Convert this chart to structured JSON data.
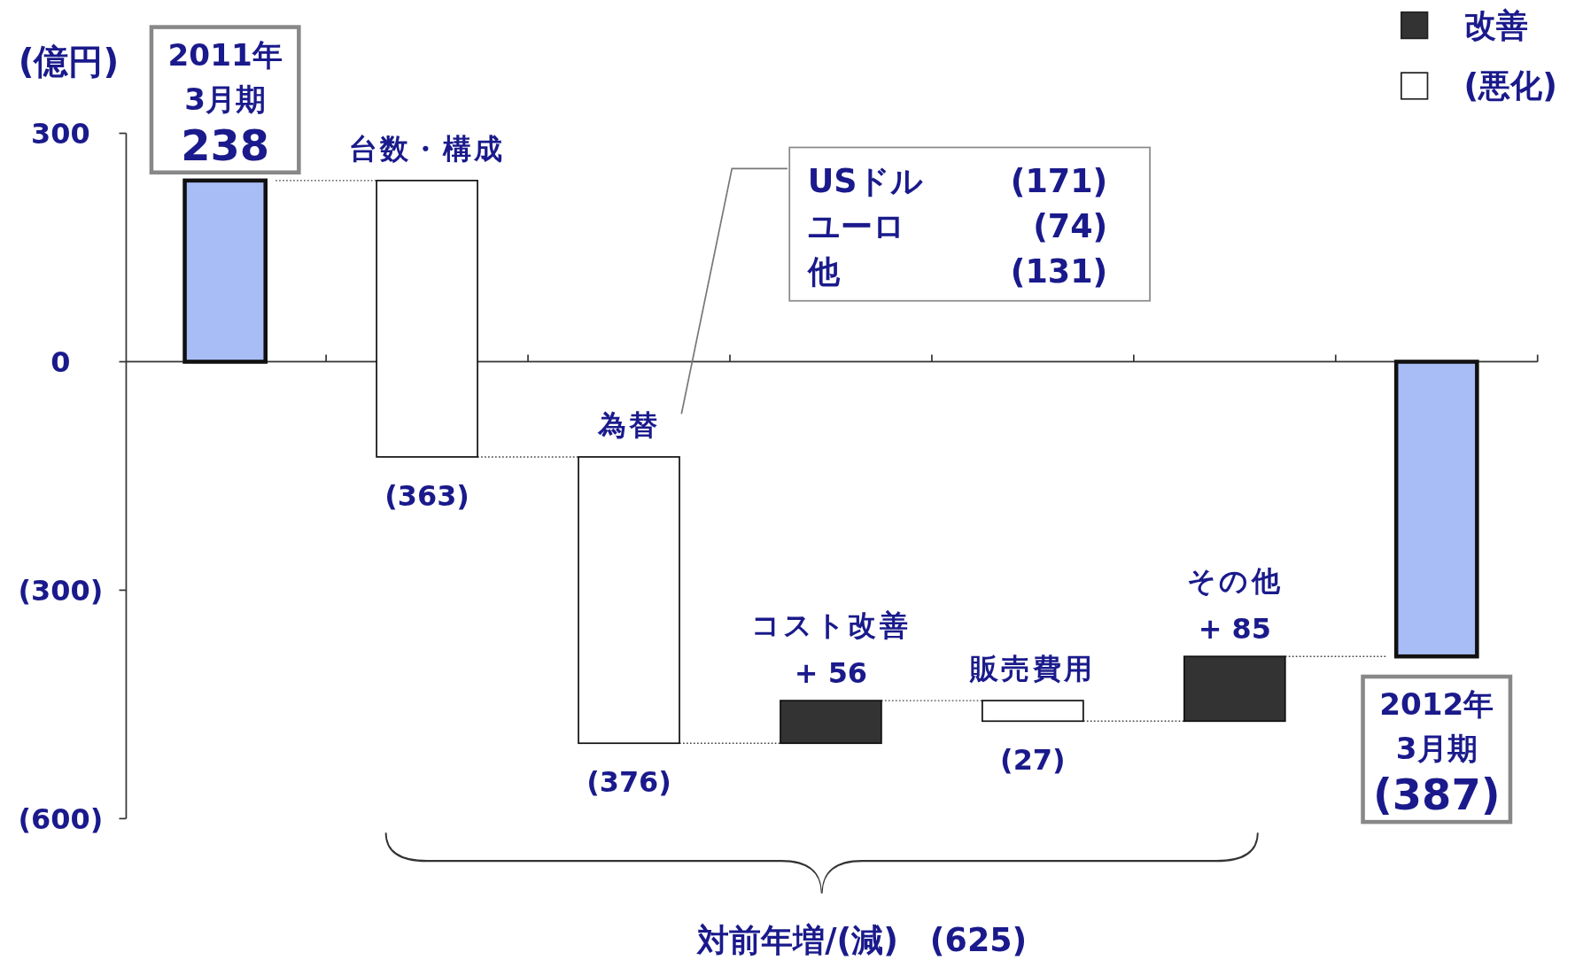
{
  "chart_data": {
    "type": "bar",
    "ylabel": "(億円)",
    "categories": [
      "2011年 3月期",
      "台数・構成",
      "為替",
      "コスト改善",
      "販売費用",
      "その他",
      "2012年 3月期"
    ],
    "series": [
      {
        "color": "#a8bdf5",
        "values": [
          238,
          null,
          null,
          null,
          null,
          null,
          -387
        ],
        "base": [
          0,
          null,
          null,
          null,
          null,
          null,
          0
        ],
        "value_labels": [
          "238",
          null,
          null,
          null,
          null,
          null,
          "(387)"
        ]
      },
      {
        "name": "改善",
        "color": "#333333",
        "values": [
          null,
          null,
          null,
          56,
          null,
          85,
          null
        ],
        "base": [
          null,
          null,
          null,
          -501,
          null,
          -472,
          null
        ],
        "value_labels": [
          null,
          null,
          null,
          "+ 56",
          null,
          "+ 85",
          null
        ]
      },
      {
        "name": "(悪化)",
        "color": "#ffffff",
        "values": [
          null,
          -363,
          -376,
          null,
          -27,
          null,
          null
        ],
        "base": [
          null,
          238,
          -125,
          null,
          -445,
          null,
          null
        ],
        "value_labels": [
          null,
          "(363)",
          "(376)",
          null,
          "(27)",
          null,
          null
        ]
      }
    ],
    "ylim": [
      -600,
      300
    ],
    "yticks": [
      {
        "value": 300,
        "label": "300"
      },
      {
        "value": 0,
        "label": "0"
      },
      {
        "value": -300,
        "label": "(300)"
      },
      {
        "value": -600,
        "label": "(600)"
      }
    ],
    "legend": "top right",
    "annotations": [
      "USドル (171)",
      "ユーロ (74)",
      "他 (131)",
      "対前年増/(減)　(625)"
    ]
  }
}
